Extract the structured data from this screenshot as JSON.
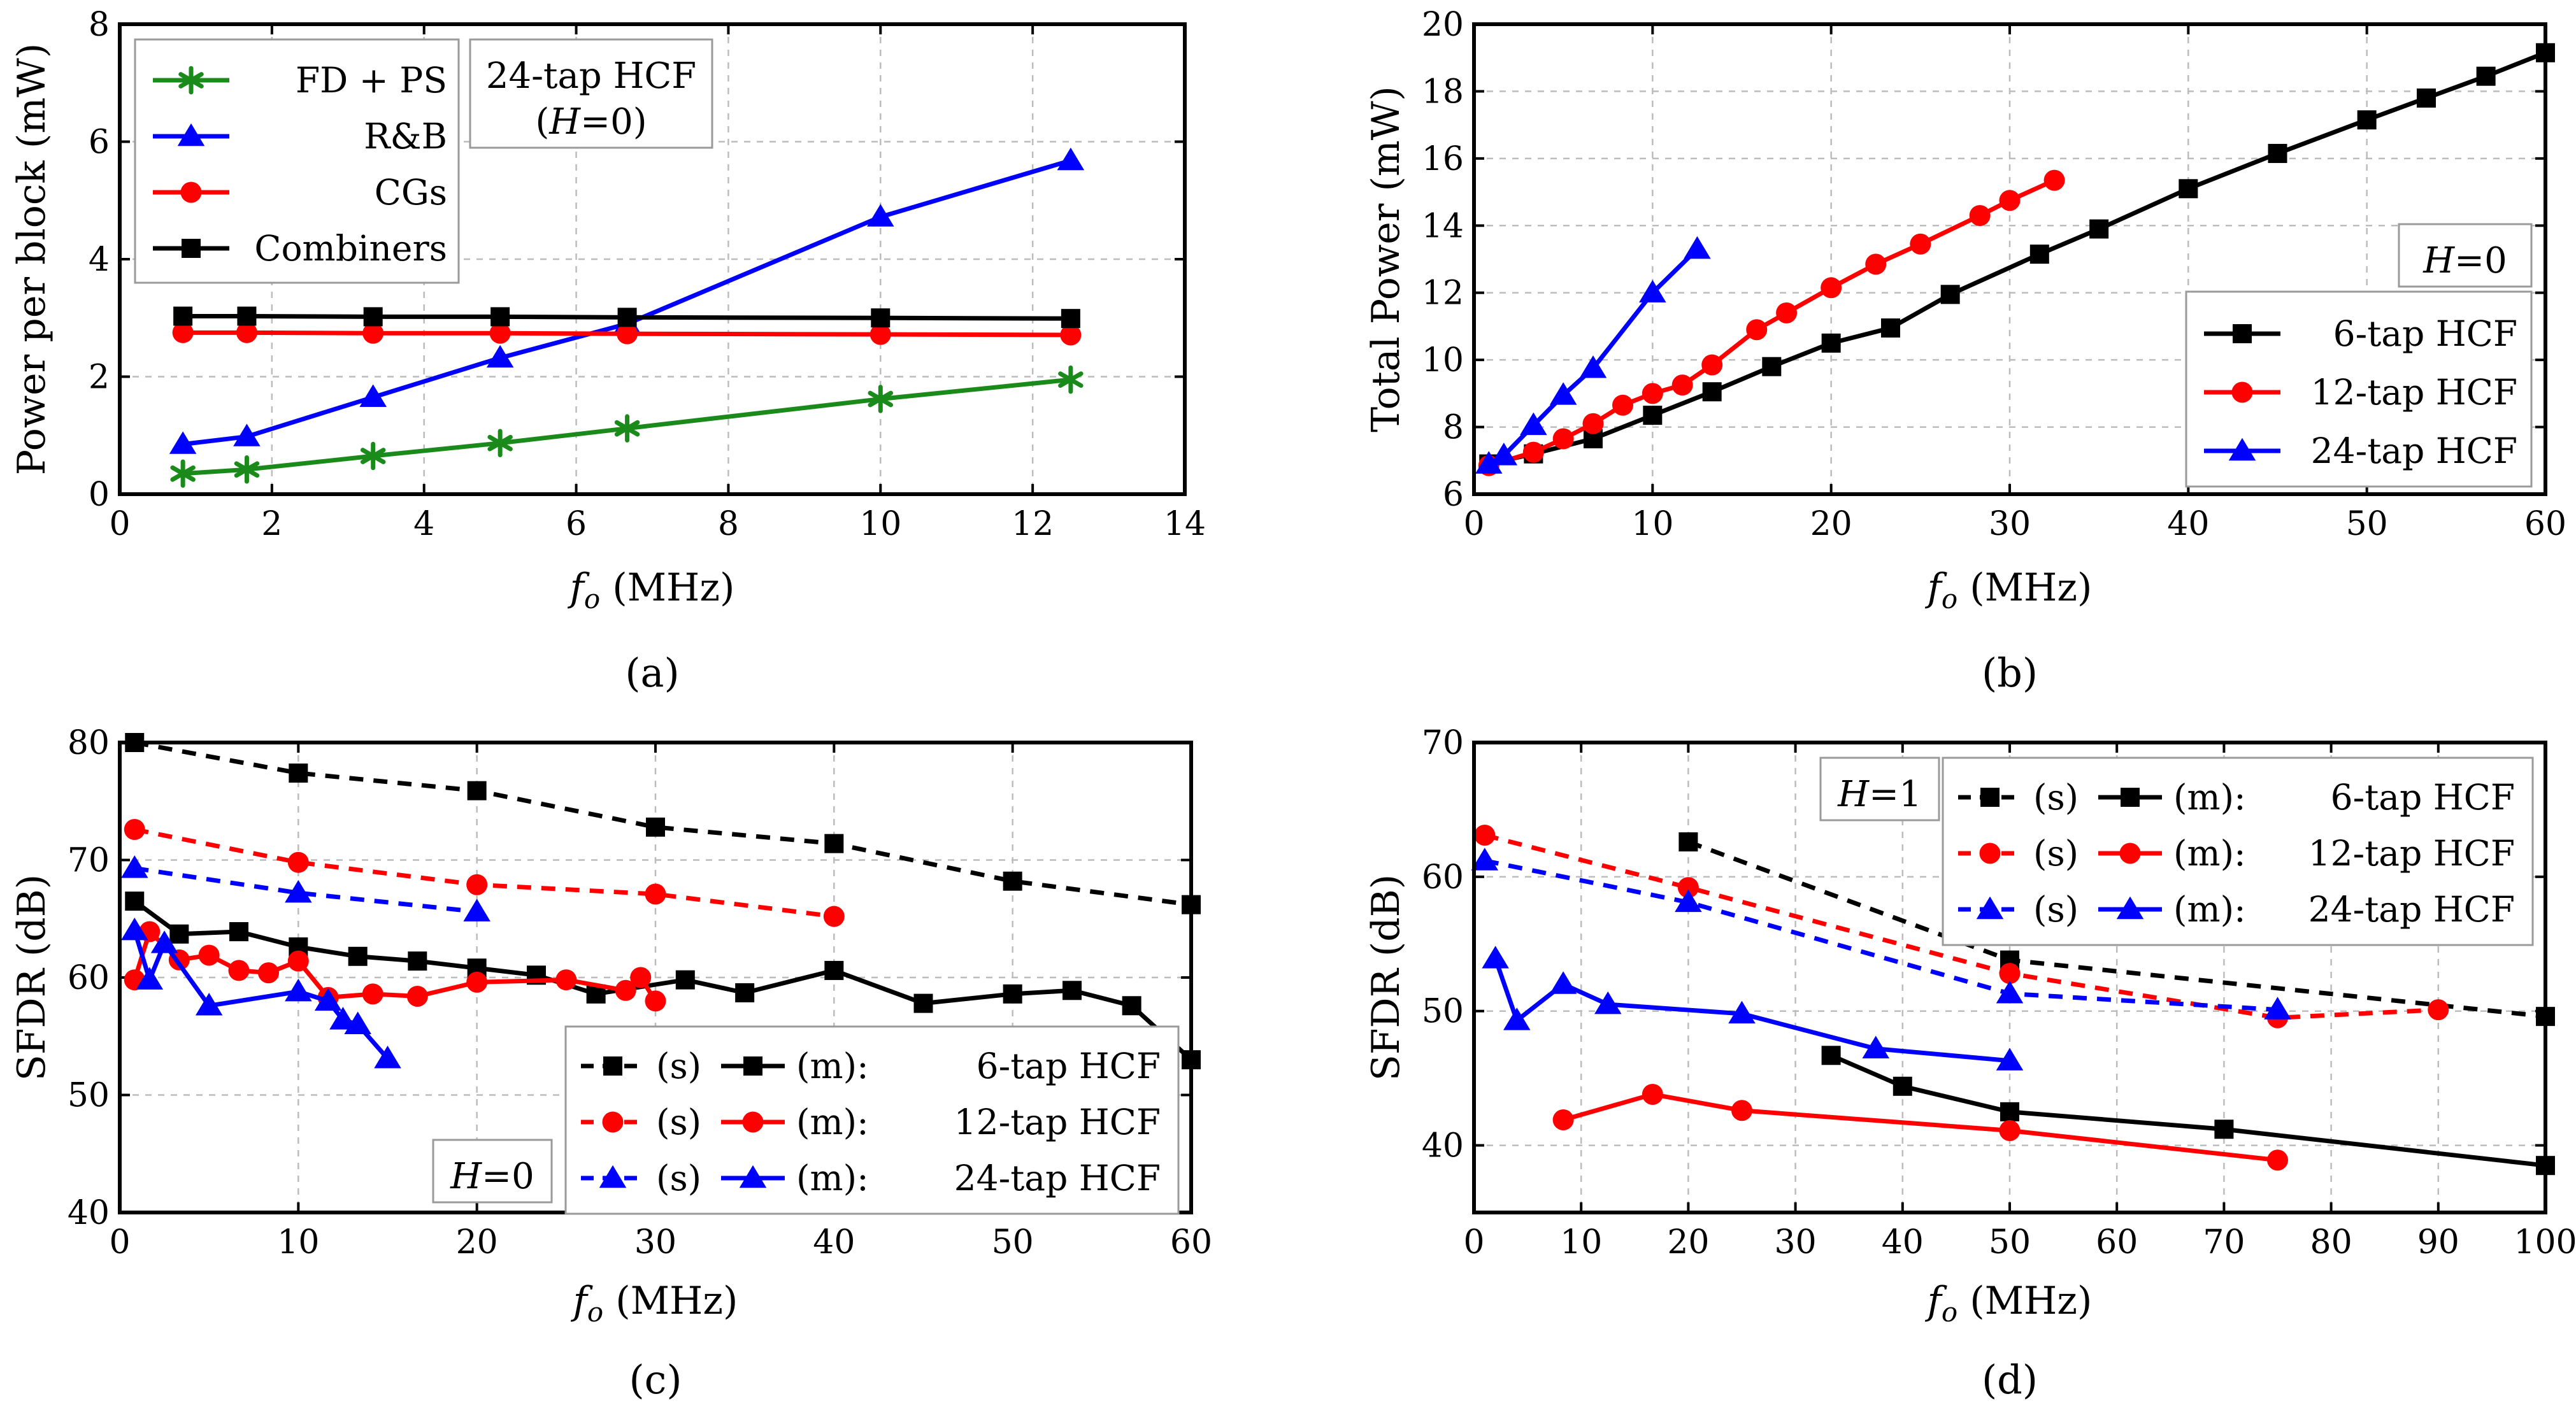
{
  "colors": {
    "black": "#000000",
    "red": "#ff0000",
    "blue": "#0000ff",
    "green": "#1a8a1a"
  },
  "chart_data": [
    {
      "type": "line",
      "panel_label": "(a)",
      "xlabel": "f_o (MHz)",
      "ylabel": "Power per block (mW)",
      "xlim": [
        0,
        14
      ],
      "ylim": [
        0,
        8
      ],
      "xticks": [
        0,
        2,
        4,
        6,
        8,
        10,
        12,
        14
      ],
      "yticks": [
        0,
        2,
        4,
        6,
        8
      ],
      "annotation": [
        "24-tap HCF",
        "(H=0)"
      ],
      "legend_position": "top-left",
      "series": [
        {
          "name": "FD + PS",
          "color": "#1a8a1a",
          "marker": "star",
          "dash": false,
          "x": [
            0.83,
            1.67,
            3.33,
            5.0,
            6.67,
            10.0,
            12.5
          ],
          "y": [
            0.35,
            0.42,
            0.65,
            0.87,
            1.12,
            1.62,
            1.95
          ]
        },
        {
          "name": "R&B",
          "color": "#0000ff",
          "marker": "triangle",
          "dash": false,
          "x": [
            0.83,
            1.67,
            3.33,
            5.0,
            6.67,
            10.0,
            12.5
          ],
          "y": [
            0.85,
            0.98,
            1.65,
            2.32,
            2.9,
            4.72,
            5.68
          ]
        },
        {
          "name": "CGs",
          "color": "#ff0000",
          "marker": "circle",
          "dash": false,
          "x": [
            0.83,
            1.67,
            3.33,
            5.0,
            6.67,
            10.0,
            12.5
          ],
          "y": [
            2.75,
            2.75,
            2.74,
            2.74,
            2.73,
            2.72,
            2.71
          ]
        },
        {
          "name": "Combiners",
          "color": "#000000",
          "marker": "square",
          "dash": false,
          "x": [
            0.83,
            1.67,
            3.33,
            5.0,
            6.67,
            10.0,
            12.5
          ],
          "y": [
            3.03,
            3.03,
            3.02,
            3.02,
            3.01,
            3.0,
            2.99
          ]
        }
      ]
    },
    {
      "type": "line",
      "panel_label": "(b)",
      "xlabel": "f_o (MHz)",
      "ylabel": "Total Power (mW)",
      "xlim": [
        0,
        60
      ],
      "ylim": [
        6,
        20
      ],
      "xticks": [
        0,
        10,
        20,
        30,
        40,
        50,
        60
      ],
      "yticks": [
        6,
        8,
        10,
        12,
        14,
        16,
        18,
        20
      ],
      "annotation": [
        "H=0"
      ],
      "legend_position": "bottom-right",
      "series": [
        {
          "name": "6-tap HCF",
          "color": "#000000",
          "marker": "square",
          "dash": false,
          "x": [
            0.83,
            3.33,
            6.67,
            10.0,
            13.33,
            16.67,
            20.0,
            23.33,
            26.67,
            31.67,
            35.0,
            40.0,
            45.0,
            50.0,
            53.33,
            56.67,
            60.0
          ],
          "y": [
            6.9,
            7.2,
            7.65,
            8.35,
            9.05,
            9.8,
            10.5,
            10.95,
            11.95,
            13.15,
            13.9,
            15.1,
            16.15,
            17.15,
            17.8,
            18.45,
            19.15
          ]
        },
        {
          "name": "12-tap HCF",
          "color": "#ff0000",
          "marker": "circle",
          "dash": false,
          "x": [
            0.83,
            3.33,
            5.0,
            6.67,
            8.33,
            10.0,
            11.67,
            13.33,
            15.83,
            17.5,
            20.0,
            22.5,
            25.0,
            28.33,
            30.0,
            32.5
          ],
          "y": [
            6.85,
            7.25,
            7.65,
            8.1,
            8.65,
            9.0,
            9.25,
            9.85,
            10.9,
            11.4,
            12.15,
            12.85,
            13.45,
            14.3,
            14.75,
            15.35
          ]
        },
        {
          "name": "24-tap HCF",
          "color": "#0000ff",
          "marker": "triangle",
          "dash": false,
          "x": [
            0.83,
            1.67,
            3.33,
            5.0,
            6.67,
            10.0,
            12.5
          ],
          "y": [
            6.9,
            7.15,
            8.05,
            8.95,
            9.75,
            12.0,
            13.3
          ]
        }
      ]
    },
    {
      "type": "line",
      "panel_label": "(c)",
      "xlabel": "f_o (MHz)",
      "ylabel": "SFDR (dB)",
      "xlim": [
        0,
        60
      ],
      "ylim": [
        40,
        80
      ],
      "xticks": [
        0,
        10,
        20,
        30,
        40,
        50,
        60
      ],
      "yticks": [
        40,
        50,
        60,
        70,
        80
      ],
      "annotation": [
        "H=0"
      ],
      "legend_position": "bottom-right",
      "legend_rows": [
        {
          "s": "(s)",
          "m": "(m):",
          "label": "6-tap HCF",
          "color": "#000000",
          "marker": "square"
        },
        {
          "s": "(s)",
          "m": "(m):",
          "label": "12-tap HCF",
          "color": "#ff0000",
          "marker": "circle"
        },
        {
          "s": "(s)",
          "m": "(m):",
          "label": "24-tap HCF",
          "color": "#0000ff",
          "marker": "triangle"
        }
      ],
      "series": [
        {
          "name": "(s) 6-tap HCF",
          "color": "#000000",
          "marker": "square",
          "dash": true,
          "x": [
            0.83,
            10.0,
            20.0,
            30.0,
            40.0,
            50.0,
            60.0
          ],
          "y": [
            80.0,
            77.4,
            75.9,
            72.8,
            71.4,
            68.2,
            66.2
          ]
        },
        {
          "name": "(s) 12-tap HCF",
          "color": "#ff0000",
          "marker": "circle",
          "dash": true,
          "x": [
            0.83,
            10.0,
            20.0,
            30.0,
            40.0
          ],
          "y": [
            72.6,
            69.8,
            67.9,
            67.1,
            65.2
          ]
        },
        {
          "name": "(s) 24-tap HCF",
          "color": "#0000ff",
          "marker": "triangle",
          "dash": true,
          "x": [
            0.83,
            10.0,
            20.0
          ],
          "y": [
            69.3,
            67.2,
            65.6
          ]
        },
        {
          "name": "(m) 6-tap HCF",
          "color": "#000000",
          "marker": "square",
          "dash": false,
          "x": [
            0.83,
            3.33,
            6.67,
            10.0,
            13.33,
            16.67,
            20.0,
            23.33,
            26.67,
            31.67,
            35.0,
            40.0,
            45.0,
            50.0,
            53.33,
            56.67,
            60.0
          ],
          "y": [
            66.5,
            63.7,
            63.9,
            62.6,
            61.8,
            61.4,
            60.8,
            60.2,
            58.6,
            59.8,
            58.7,
            60.6,
            57.8,
            58.6,
            58.9,
            57.6,
            53.0
          ]
        },
        {
          "name": "(m) 12-tap HCF",
          "color": "#ff0000",
          "marker": "circle",
          "dash": false,
          "x": [
            0.83,
            1.67,
            3.33,
            5.0,
            6.67,
            8.33,
            10.0,
            11.67,
            14.17,
            16.67,
            20.0,
            25.0,
            28.33,
            29.17,
            30.0
          ],
          "y": [
            59.8,
            63.9,
            61.5,
            61.9,
            60.6,
            60.4,
            61.4,
            58.3,
            58.6,
            58.4,
            59.6,
            59.8,
            58.9,
            60.0,
            58.0
          ]
        },
        {
          "name": "(m) 24-tap HCF",
          "color": "#0000ff",
          "marker": "triangle",
          "dash": false,
          "x": [
            0.83,
            1.67,
            2.5,
            5.0,
            10.0,
            11.67,
            12.5,
            13.33,
            15.0
          ],
          "y": [
            64.0,
            59.8,
            62.9,
            57.6,
            58.8,
            58.0,
            56.4,
            56.0,
            53.1
          ]
        }
      ]
    },
    {
      "type": "line",
      "panel_label": "(d)",
      "xlabel": "f_o (MHz)",
      "ylabel": "SFDR (dB)",
      "xlim": [
        0,
        100
      ],
      "ylim": [
        35,
        70
      ],
      "xticks": [
        0,
        10,
        20,
        30,
        40,
        50,
        60,
        70,
        80,
        90,
        100
      ],
      "yticks": [
        40,
        50,
        60,
        70
      ],
      "annotation": [
        "H=1"
      ],
      "legend_position": "top-right",
      "legend_rows": [
        {
          "s": "(s)",
          "m": "(m):",
          "label": "6-tap HCF",
          "color": "#000000",
          "marker": "square"
        },
        {
          "s": "(s)",
          "m": "(m):",
          "label": "12-tap HCF",
          "color": "#ff0000",
          "marker": "circle"
        },
        {
          "s": "(s)",
          "m": "(m):",
          "label": "24-tap HCF",
          "color": "#0000ff",
          "marker": "triangle"
        }
      ],
      "series": [
        {
          "name": "(s) 6-tap HCF",
          "color": "#000000",
          "marker": "square",
          "dash": true,
          "x": [
            20.0,
            50.0,
            100.0
          ],
          "y": [
            62.6,
            53.8,
            49.6
          ]
        },
        {
          "name": "(s) 12-tap HCF",
          "color": "#ff0000",
          "marker": "circle",
          "dash": true,
          "x": [
            1.0,
            20.0,
            50.0,
            75.0,
            90.0
          ],
          "y": [
            63.1,
            59.2,
            52.8,
            49.5,
            50.1
          ]
        },
        {
          "name": "(s) 24-tap HCF",
          "color": "#0000ff",
          "marker": "triangle",
          "dash": true,
          "x": [
            1.0,
            20.0,
            50.0,
            75.0
          ],
          "y": [
            61.2,
            58.1,
            51.3,
            50.1
          ]
        },
        {
          "name": "(m) 6-tap HCF",
          "color": "#000000",
          "marker": "square",
          "dash": false,
          "x": [
            33.33,
            40.0,
            50.0,
            70.0,
            100.0
          ],
          "y": [
            46.7,
            44.4,
            42.5,
            41.2,
            38.5
          ]
        },
        {
          "name": "(m) 12-tap HCF",
          "color": "#ff0000",
          "marker": "circle",
          "dash": false,
          "x": [
            8.33,
            16.67,
            25.0,
            50.0,
            75.0
          ],
          "y": [
            41.9,
            43.8,
            42.6,
            41.1,
            38.9
          ]
        },
        {
          "name": "(m) 24-tap HCF",
          "color": "#0000ff",
          "marker": "triangle",
          "dash": false,
          "x": [
            2.0,
            4.0,
            8.33,
            12.5,
            25.0,
            37.5,
            50.0
          ],
          "y": [
            53.9,
            49.3,
            52.0,
            50.5,
            49.8,
            47.2,
            46.3
          ]
        }
      ]
    }
  ]
}
